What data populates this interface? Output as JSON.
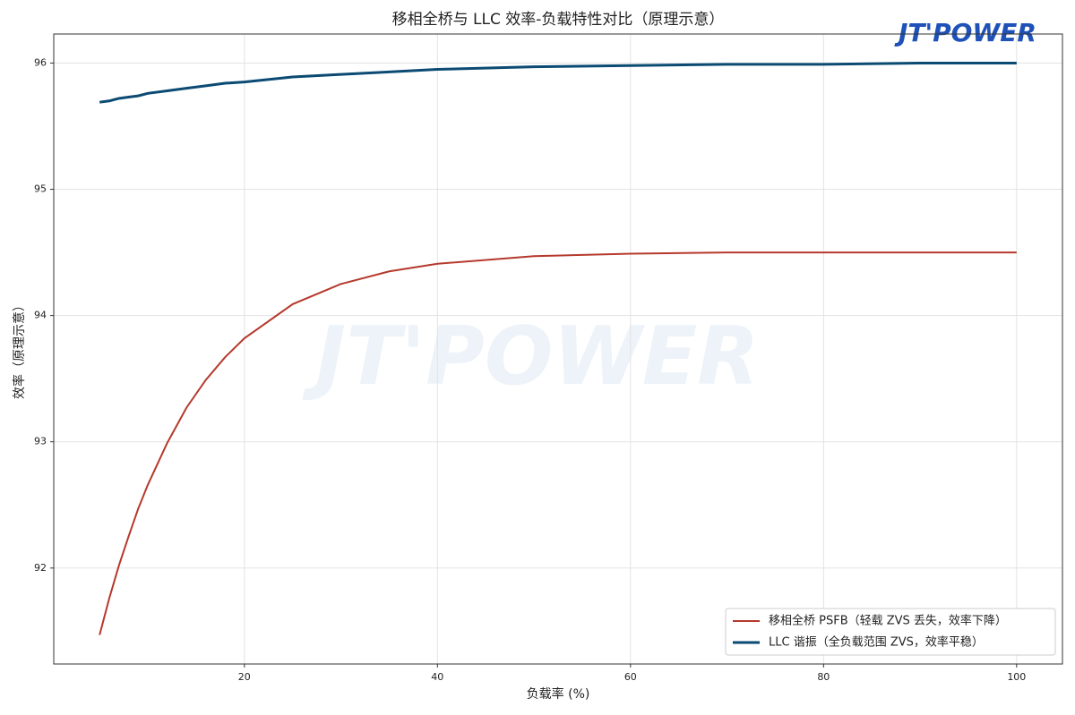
{
  "logo": "JT'POWER",
  "chart_data": {
    "type": "line",
    "title": "移相全桥与 LLC 效率-负载特性对比（原理示意）",
    "x_label": "负载率 (%)",
    "y_label": "效率（原理示意）",
    "x": [
      5,
      6,
      7,
      8,
      9,
      10,
      12,
      14,
      16,
      18,
      20,
      25,
      30,
      35,
      40,
      50,
      60,
      70,
      80,
      90,
      100
    ],
    "series": [
      {
        "name": "移相全桥 PSFB（轻载 ZVS 丢失，效率下降）",
        "color": "#b5392c",
        "values": [
          91.47,
          91.76,
          92.02,
          92.25,
          92.47,
          92.66,
          92.99,
          93.27,
          93.49,
          93.67,
          93.82,
          94.09,
          94.25,
          94.35,
          94.41,
          94.47,
          94.49,
          94.5,
          94.5,
          94.5,
          94.5
        ]
      },
      {
        "name": "LLC 谐振（全负载范围 ZVS，效率平稳）",
        "color": "#0b4a73",
        "values": [
          95.69,
          95.7,
          95.72,
          95.73,
          95.74,
          95.76,
          95.78,
          95.8,
          95.82,
          95.84,
          95.85,
          95.89,
          95.91,
          95.93,
          95.95,
          95.97,
          95.98,
          95.99,
          95.99,
          96.0,
          96.0
        ]
      }
    ],
    "xlim": [
      0.25,
      104.75
    ],
    "ylim": [
      91.24,
      96.23
    ],
    "xticks": [
      20,
      40,
      60,
      80,
      100
    ],
    "yticks": [
      92,
      93,
      94,
      95,
      96
    ],
    "grid": true,
    "legend": "lower right"
  }
}
